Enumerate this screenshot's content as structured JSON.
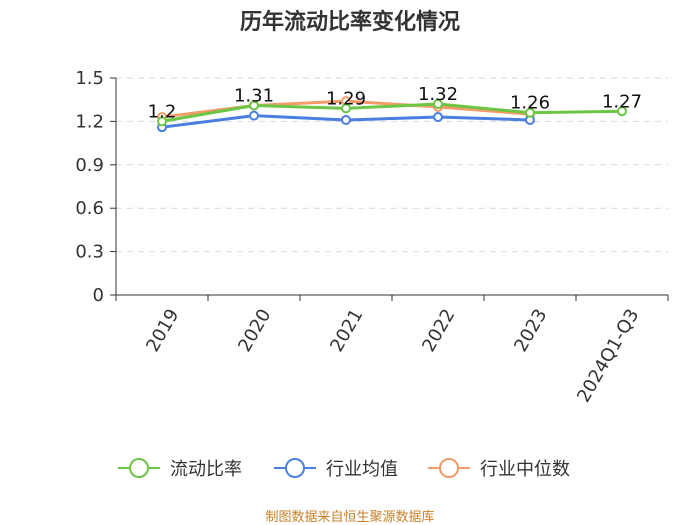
{
  "chart_data": {
    "type": "line",
    "title": "历年流动比率变化情况",
    "categories": [
      "2019",
      "2020",
      "2021",
      "2022",
      "2023",
      "2024Q1-Q3"
    ],
    "ylim": [
      0,
      1.5
    ],
    "yticks": [
      0,
      0.3,
      0.6,
      0.9,
      1.2,
      1.5
    ],
    "ytick_labels": [
      "0",
      "0.3",
      "0.6",
      "0.9",
      "1.2",
      "1.5"
    ],
    "grid": true,
    "legend_position": "bottom",
    "series": [
      {
        "name": "流动比率",
        "color": "#6cc644",
        "values": [
          1.2,
          1.31,
          1.29,
          1.32,
          1.26,
          1.27
        ],
        "labels": [
          "1.2",
          "1.31",
          "1.29",
          "1.32",
          "1.26",
          "1.27"
        ]
      },
      {
        "name": "行业均值",
        "color": "#4a7fe0",
        "values": [
          1.16,
          1.24,
          1.21,
          1.23,
          1.21,
          null
        ]
      },
      {
        "name": "行业中位数",
        "color": "#f59b6a",
        "values": [
          1.23,
          1.31,
          1.34,
          1.3,
          1.25,
          null
        ]
      }
    ]
  },
  "footer": {
    "source": "制图数据来自恒生聚源数据库"
  }
}
